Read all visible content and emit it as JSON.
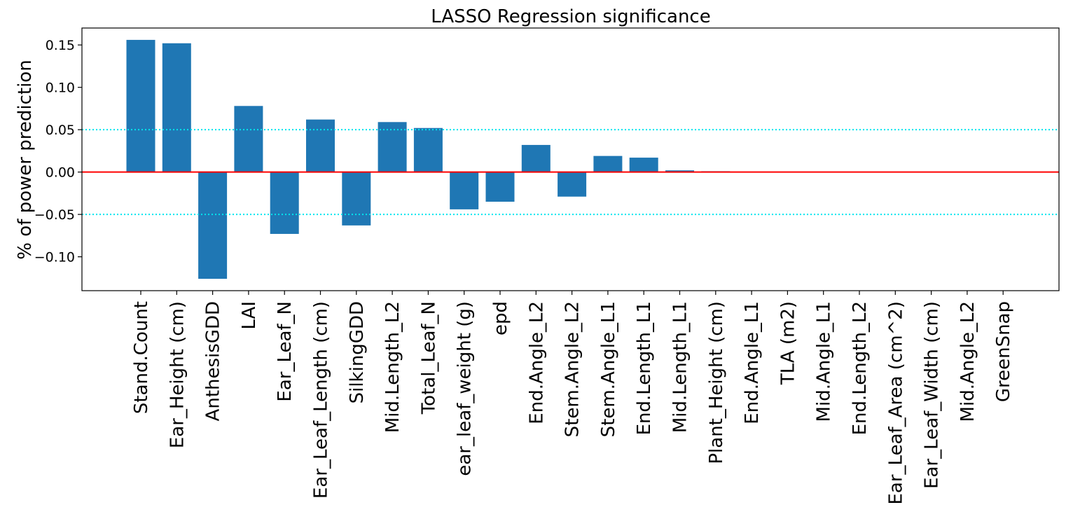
{
  "chart_data": {
    "type": "bar",
    "title": "LASSO Regression significance",
    "xlabel": "",
    "ylabel": "% of power prediction",
    "ylim": [
      -0.14,
      0.17
    ],
    "yticks": [
      -0.1,
      -0.05,
      0.0,
      0.05,
      0.1,
      0.15
    ],
    "ytick_labels": [
      "−0.10",
      "−0.05",
      "0.00",
      "0.05",
      "0.10",
      "0.15"
    ],
    "categories": [
      "Stand.Count",
      "Ear_Height (cm)",
      "AnthesisGDD",
      "LAI",
      "Ear_Leaf_N",
      "Ear_Leaf_Length (cm)",
      "SilkingGDD",
      "Mid.Length_L2",
      "Total_Leaf_N",
      "ear_leaf_weight (g)",
      "epd",
      "End.Angle_L2",
      "Stem.Angle_L2",
      "Stem.Angle_L1",
      "End.Length_L1",
      "Mid.Length_L1",
      "Plant_Height (cm)",
      "End.Angle_L1",
      "TLA (m2)",
      "Mid.Angle_L1",
      "End.Length_L2",
      "Ear_Leaf_Area (cm^2)",
      "Ear_Leaf_Width (cm)",
      "Mid.Angle_L2",
      "GreenSnap"
    ],
    "values": [
      0.156,
      0.152,
      -0.126,
      0.078,
      -0.073,
      0.062,
      -0.063,
      0.059,
      0.052,
      -0.044,
      -0.035,
      0.032,
      -0.029,
      0.019,
      0.017,
      0.002,
      0.001,
      0.0,
      0.0,
      0.0,
      0.0,
      0.0,
      0.0,
      0.0,
      0.0
    ],
    "reference_lines": [
      {
        "y": 0.0,
        "color": "#ff0000",
        "style": "solid"
      },
      {
        "y": 0.05,
        "color": "#00e5ee",
        "style": "dotted"
      },
      {
        "y": -0.05,
        "color": "#00e5ee",
        "style": "dotted"
      }
    ],
    "bar_color": "#1f77b4",
    "grid": false,
    "legend": "none"
  }
}
